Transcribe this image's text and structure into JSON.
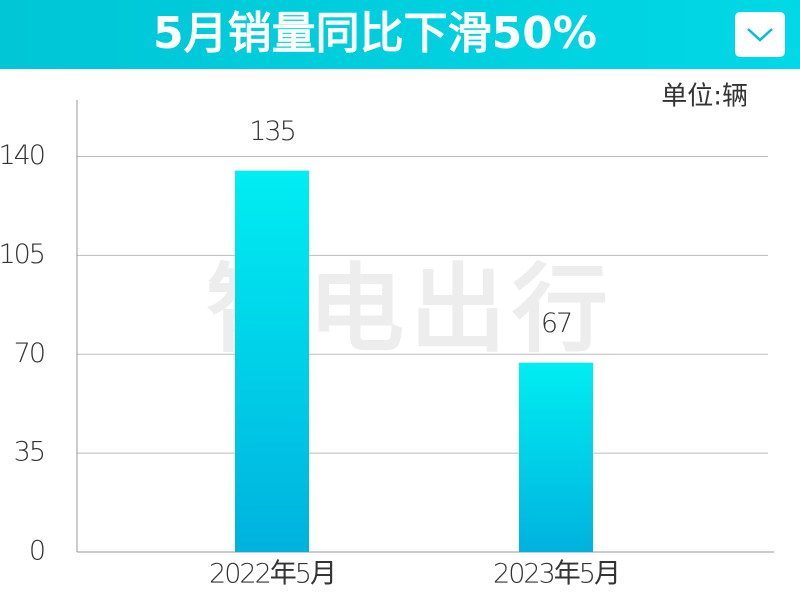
{
  "chart_data": {
    "type": "bar",
    "title": "5月销量同比下滑50%",
    "unit_label": "单位:辆",
    "watermark": "智电出行",
    "categories": [
      "2022年5月",
      "2023年5月"
    ],
    "values": [
      135,
      67
    ],
    "color_top": "#00eef2",
    "color_bottom": "#00b2de",
    "ylim": [
      0,
      160
    ],
    "yticks": [
      0,
      35,
      70,
      105,
      140
    ],
    "grid": true
  }
}
